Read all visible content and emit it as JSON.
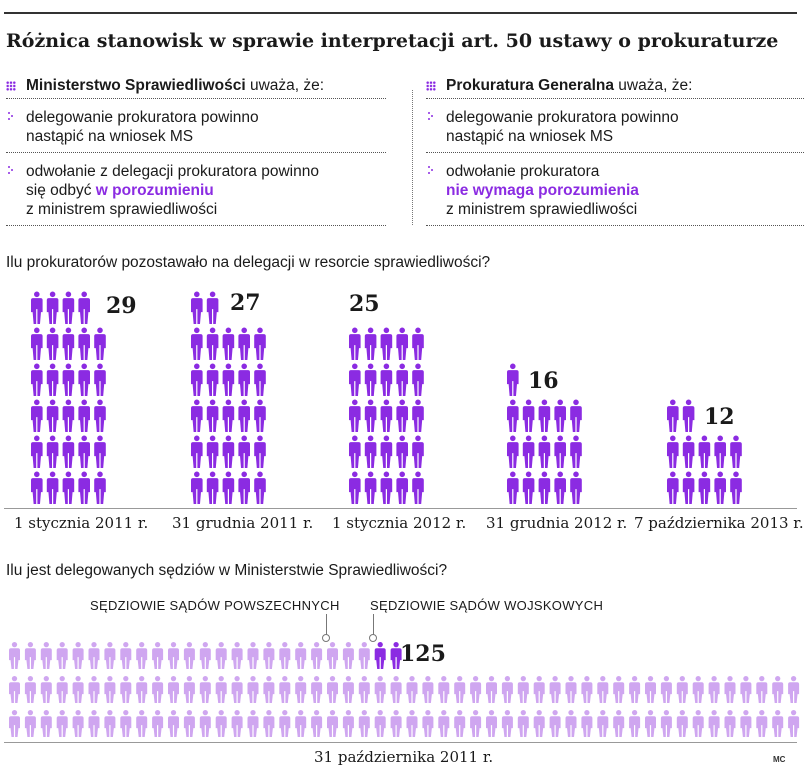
{
  "title": "Różnica stanowisk w sprawie interpretacji art. 50 ustawy o prokuraturze",
  "left_column": {
    "heading_bold": "Ministerstwo Sprawiedliwości",
    "heading_rest": " uważa, że:",
    "item1": "delegowanie prokuratora powinno nastąpić na wniosek MS",
    "item2_pre": "odwołanie z delegacji prokuratora powinno się odbyć ",
    "item2_hl": "w porozumieniu",
    "item2_post": "z ministrem sprawiedliwości"
  },
  "right_column": {
    "heading_bold": "Prokuratura Generalna",
    "heading_rest": " uważa, że:",
    "item1": "delegowanie prokuratora powinno nastąpić na wniosek MS",
    "item2_pre": "odwołanie prokuratora",
    "item2_hl": "nie wymaga porozumienia",
    "item2_post": "z ministrem sprawiedliwości"
  },
  "colors": {
    "accent": "#8b2be2",
    "light": "#cfa6f0",
    "text": "#1a1a1a"
  },
  "chart_data": [
    {
      "type": "pictogram",
      "title": "Ilu prokuratorów pozostawało na delegacji w resorcie sprawiedliwości?",
      "categories": [
        "1 stycznia 2011 r.",
        "31 grudnia 2011 r.",
        "1 stycznia 2012 r.",
        "31 grudnia 2012 r.",
        "7 października 2013 r."
      ],
      "values": [
        29,
        27,
        25,
        16,
        12
      ],
      "labels": [
        "29",
        "27",
        "25",
        "16",
        "12"
      ]
    },
    {
      "type": "pictogram",
      "title": "Ilu jest delegowanych sędziów w Ministerstwie Sprawiedliwości?",
      "category": "31 października 2011 r.",
      "total": 125,
      "total_label": "125",
      "series": [
        {
          "name": "SĘDZIOWIE SĄDÓW POWSZECHNYCH",
          "value": 123
        },
        {
          "name": "SĘDZIOWIE SĄDÓW WOJSKOWYCH",
          "value": 2
        }
      ]
    }
  ],
  "credit": "MC"
}
